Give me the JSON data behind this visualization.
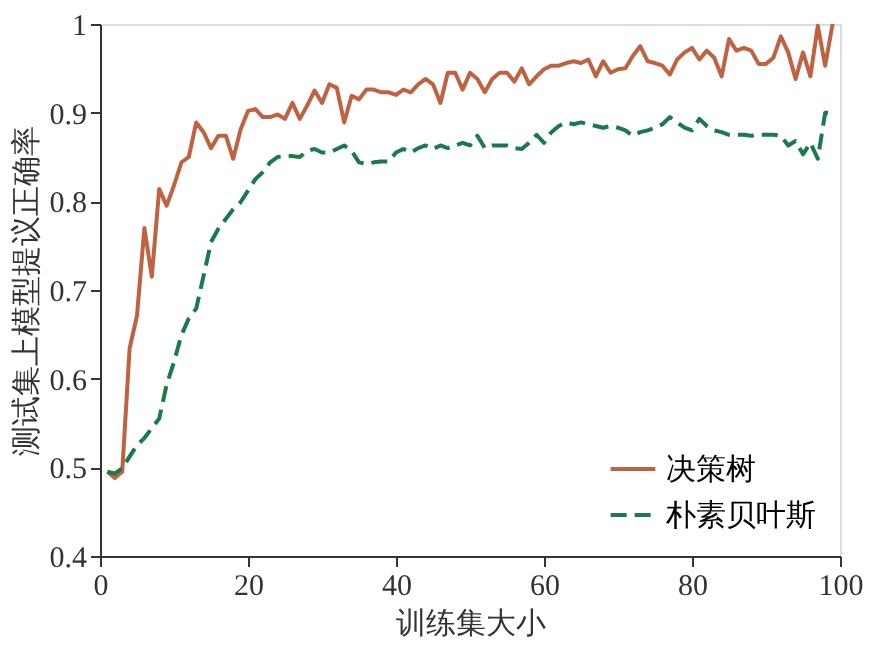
{
  "chart_data": {
    "type": "line",
    "xlabel": "训练集大小",
    "ylabel": "测试集上模型提议正确率",
    "x": [
      1,
      2,
      3,
      4,
      5,
      6,
      7,
      8,
      9,
      10,
      11,
      12,
      13,
      14,
      15,
      16,
      17,
      18,
      19,
      20,
      21,
      22,
      23,
      24,
      25,
      26,
      27,
      28,
      29,
      30,
      31,
      32,
      33,
      34,
      35,
      36,
      37,
      38,
      39,
      40,
      41,
      42,
      43,
      44,
      45,
      46,
      47,
      48,
      49,
      50,
      51,
      52,
      53,
      54,
      55,
      56,
      57,
      58,
      59,
      60,
      61,
      62,
      63,
      64,
      65,
      66,
      67,
      68,
      69,
      70,
      71,
      72,
      73,
      74,
      75,
      76,
      77,
      78,
      79,
      80,
      81,
      82,
      83,
      84,
      85,
      86,
      87,
      88,
      89,
      90,
      91,
      92,
      93,
      94,
      95,
      96,
      97,
      98,
      99
    ],
    "series": [
      {
        "name": "决策树",
        "color": "#c0623f",
        "line_style": "solid",
        "values": [
          0.495,
          0.488,
          0.495,
          0.634,
          0.671,
          0.77,
          0.715,
          0.814,
          0.795,
          0.818,
          0.844,
          0.85,
          0.889,
          0.878,
          0.86,
          0.874,
          0.874,
          0.848,
          0.881,
          0.902,
          0.904,
          0.895,
          0.895,
          0.898,
          0.893,
          0.911,
          0.893,
          0.908,
          0.925,
          0.911,
          0.932,
          0.928,
          0.889,
          0.919,
          0.915,
          0.926,
          0.926,
          0.923,
          0.923,
          0.92,
          0.926,
          0.923,
          0.932,
          0.938,
          0.932,
          0.911,
          0.945,
          0.945,
          0.926,
          0.945,
          0.938,
          0.923,
          0.938,
          0.945,
          0.945,
          0.935,
          0.95,
          0.932,
          0.941,
          0.949,
          0.953,
          0.953,
          0.956,
          0.958,
          0.956,
          0.96,
          0.941,
          0.958,
          0.945,
          0.949,
          0.95,
          0.964,
          0.975,
          0.958,
          0.956,
          0.953,
          0.943,
          0.96,
          0.968,
          0.973,
          0.96,
          0.97,
          0.962,
          0.941,
          0.983,
          0.97,
          0.973,
          0.97,
          0.955,
          0.955,
          0.962,
          0.986,
          0.968,
          0.938,
          0.968,
          0.941,
          0.998,
          0.953,
          1.0
        ]
      },
      {
        "name": "朴素贝叶斯",
        "color": "#1a7a4a",
        "line_style": "dashed",
        "values": [
          0.495,
          0.493,
          0.499,
          0.512,
          0.525,
          0.533,
          0.544,
          0.555,
          0.593,
          0.619,
          0.649,
          0.668,
          0.679,
          0.716,
          0.754,
          0.769,
          0.78,
          0.791,
          0.799,
          0.812,
          0.825,
          0.833,
          0.844,
          0.85,
          0.851,
          0.851,
          0.85,
          0.857,
          0.859,
          0.855,
          0.855,
          0.859,
          0.863,
          0.857,
          0.844,
          0.842,
          0.844,
          0.845,
          0.845,
          0.855,
          0.859,
          0.855,
          0.86,
          0.863,
          0.859,
          0.863,
          0.86,
          0.863,
          0.866,
          0.863,
          0.874,
          0.86,
          0.863,
          0.863,
          0.863,
          0.86,
          0.859,
          0.866,
          0.875,
          0.866,
          0.878,
          0.885,
          0.889,
          0.887,
          0.889,
          0.887,
          0.885,
          0.883,
          0.885,
          0.883,
          0.88,
          0.874,
          0.878,
          0.88,
          0.883,
          0.887,
          0.895,
          0.889,
          0.883,
          0.88,
          0.893,
          0.885,
          0.88,
          0.878,
          0.875,
          0.875,
          0.875,
          0.874,
          0.875,
          0.875,
          0.875,
          0.874,
          0.863,
          0.868,
          0.853,
          0.866,
          0.848,
          0.9,
          0.9
        ]
      }
    ],
    "xlim": [
      0,
      100
    ],
    "xticks": [
      0,
      20,
      40,
      60,
      80,
      100
    ],
    "ylim": [
      0.4,
      1
    ],
    "yticks": [
      0.4,
      0.5,
      0.6,
      0.7,
      0.8,
      0.9,
      1
    ],
    "grid": false,
    "legend": "bottom right",
    "marker": "none"
  }
}
